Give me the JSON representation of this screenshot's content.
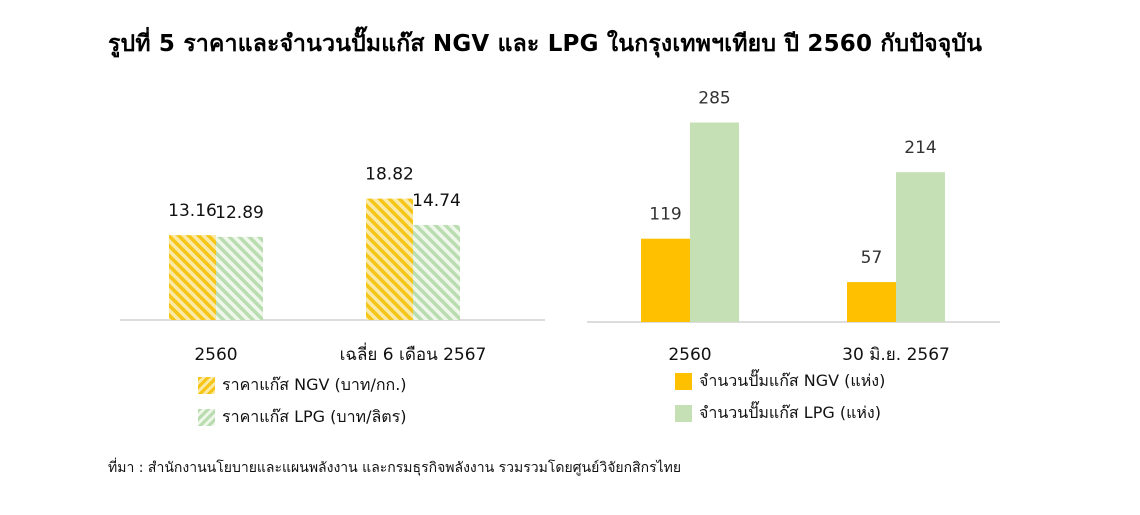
{
  "title": "รูปที่ 5 ราคาและจำนวนปั๊มแก๊ส NGV และ LPG ในกรุงเทพฯเทียบ ปี 2560 กับปัจจุบัน",
  "source": "ที่มา : สำนักงานนโยบายและแผนพลังงาน และกรมธุรกิจพลังงาน รวมรวมโดยศูนย์วิจัยกสิกรไทย",
  "colors": {
    "ngv": "#ffc000",
    "lpg": "#c5e0b4",
    "axis": "#d0d0d0"
  },
  "chart_data": [
    {
      "type": "bar",
      "style": "hatched",
      "categories": [
        "2560",
        "เฉลี่ย 6 เดือน 2567"
      ],
      "series": [
        {
          "name": "ราคาแก๊ส NGV (บาท/กก.)",
          "values": [
            13.16,
            18.82
          ],
          "labels": [
            "13.16",
            "18.82"
          ]
        },
        {
          "name": "ราคาแก๊ส LPG (บาท/ลิตร)",
          "values": [
            12.89,
            14.74
          ],
          "labels": [
            "12.89",
            "14.74"
          ]
        }
      ],
      "legend_position": "bottom-left"
    },
    {
      "type": "bar",
      "style": "solid",
      "categories": [
        "2560",
        "30 มิ.ย. 2567"
      ],
      "series": [
        {
          "name": "จำนวนปั๊มแก๊ส NGV (แห่ง)",
          "values": [
            119,
            57
          ],
          "labels": [
            "119",
            "57"
          ]
        },
        {
          "name": "จำนวนปั๊มแก๊ส LPG (แห่ง)",
          "values": [
            285,
            214
          ],
          "labels": [
            "285",
            "214"
          ]
        }
      ],
      "legend_position": "bottom-left"
    }
  ]
}
